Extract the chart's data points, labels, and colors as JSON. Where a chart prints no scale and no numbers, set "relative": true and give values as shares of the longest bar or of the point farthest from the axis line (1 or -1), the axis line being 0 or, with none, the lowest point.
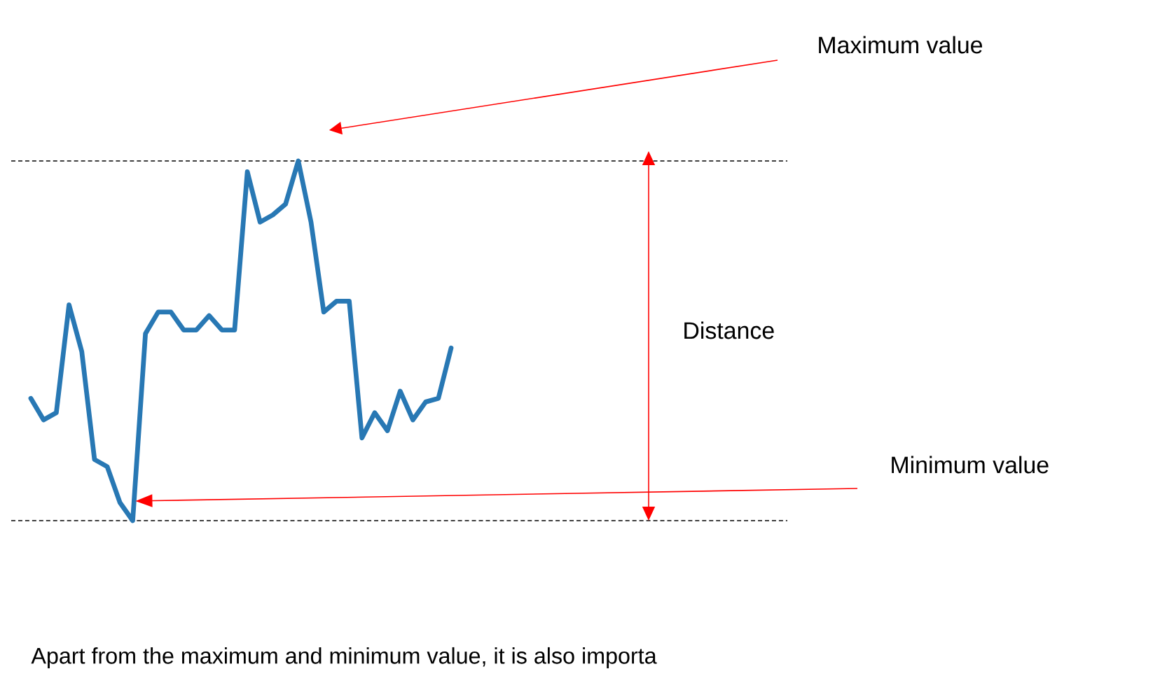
{
  "chart_data": {
    "type": "line",
    "relative": true,
    "color": "#2878b4",
    "line_style": "solid",
    "categories": [
      null,
      null,
      null,
      null,
      null,
      null,
      null,
      null,
      null,
      null,
      null,
      null,
      null,
      null,
      null,
      null,
      null,
      null,
      null,
      null,
      null,
      null,
      null,
      null,
      null,
      null,
      null,
      null,
      null,
      null,
      null,
      null,
      null,
      null
    ],
    "values": [
      0.34,
      0.28,
      0.3,
      0.6,
      0.47,
      0.17,
      0.15,
      0.05,
      0,
      0.52,
      0.58,
      0.58,
      0.53,
      0.53,
      0.57,
      0.53,
      0.53,
      0.97,
      0.83,
      0.85,
      0.88,
      1,
      0.83,
      0.58,
      0.61,
      0.61,
      0.23,
      0.3,
      0.25,
      0.36,
      0.28,
      0.33,
      0.34,
      0.48
    ],
    "ref_lines": [
      {
        "axis": "y",
        "value": 1,
        "line_style": "dashed",
        "color": "#000000"
      },
      {
        "axis": "y",
        "value": 0,
        "line_style": "dashed",
        "color": "#000000"
      }
    ],
    "annotations": [
      "Maximum value",
      "Distance",
      "Minimum value",
      "Apart from the maximum and minimum value, it is also importa"
    ]
  }
}
